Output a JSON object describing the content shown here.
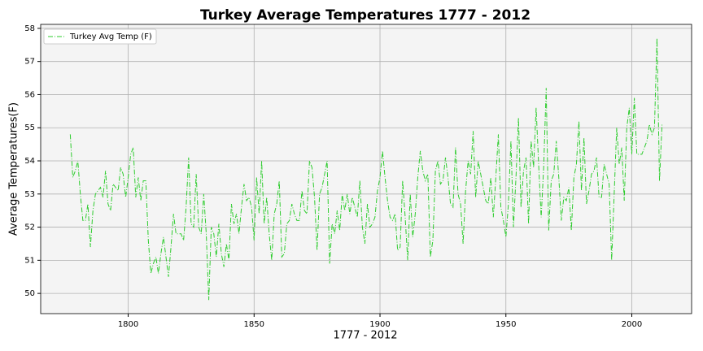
{
  "chart_data": {
    "type": "line",
    "title": "Turkey Average Temperatures 1777 - 2012",
    "xlabel": "1777 - 2012",
    "ylabel": "Average Temperatures(F)",
    "x": [
      1777,
      1778,
      1779,
      1780,
      1781,
      1782,
      1783,
      1784,
      1785,
      1786,
      1787,
      1788,
      1789,
      1790,
      1791,
      1792,
      1793,
      1794,
      1795,
      1796,
      1797,
      1798,
      1799,
      1800,
      1801,
      1802,
      1803,
      1804,
      1805,
      1806,
      1807,
      1808,
      1809,
      1810,
      1811,
      1812,
      1813,
      1814,
      1815,
      1816,
      1817,
      1818,
      1819,
      1820,
      1821,
      1822,
      1823,
      1824,
      1825,
      1826,
      1827,
      1828,
      1829,
      1830,
      1831,
      1832,
      1833,
      1834,
      1835,
      1836,
      1837,
      1838,
      1839,
      1840,
      1841,
      1842,
      1843,
      1844,
      1845,
      1846,
      1847,
      1848,
      1849,
      1850,
      1851,
      1852,
      1853,
      1854,
      1855,
      1856,
      1857,
      1858,
      1859,
      1860,
      1861,
      1862,
      1863,
      1864,
      1865,
      1866,
      1867,
      1868,
      1869,
      1870,
      1871,
      1872,
      1873,
      1874,
      1875,
      1876,
      1877,
      1878,
      1879,
      1880,
      1881,
      1882,
      1883,
      1884,
      1885,
      1886,
      1887,
      1888,
      1889,
      1890,
      1891,
      1892,
      1893,
      1894,
      1895,
      1896,
      1897,
      1898,
      1899,
      1900,
      1901,
      1902,
      1903,
      1904,
      1905,
      1906,
      1907,
      1908,
      1909,
      1910,
      1911,
      1912,
      1913,
      1914,
      1915,
      1916,
      1917,
      1918,
      1919,
      1920,
      1921,
      1922,
      1923,
      1924,
      1925,
      1926,
      1927,
      1928,
      1929,
      1930,
      1931,
      1932,
      1933,
      1934,
      1935,
      1936,
      1937,
      1938,
      1939,
      1940,
      1941,
      1942,
      1943,
      1944,
      1945,
      1946,
      1947,
      1948,
      1949,
      1950,
      1951,
      1952,
      1953,
      1954,
      1955,
      1956,
      1957,
      1958,
      1959,
      1960,
      1961,
      1962,
      1963,
      1964,
      1965,
      1966,
      1967,
      1968,
      1969,
      1970,
      1971,
      1972,
      1973,
      1974,
      1975,
      1976,
      1977,
      1978,
      1979,
      1980,
      1981,
      1982,
      1983,
      1984,
      1985,
      1986,
      1987,
      1988,
      1989,
      1990,
      1991,
      1992,
      1993,
      1994,
      1995,
      1996,
      1997,
      1998,
      1999,
      2000,
      2001,
      2002,
      2003,
      2004,
      2005,
      2006,
      2007,
      2008,
      2009,
      2010,
      2011,
      2012
    ],
    "series": [
      {
        "name": "Turkey Avg Temp (F)",
        "color": "#2ecc2e",
        "values": [
          54.8,
          53.5,
          53.7,
          54.0,
          53.0,
          52.2,
          52.2,
          52.7,
          51.4,
          52.5,
          53.0,
          53.1,
          53.2,
          52.9,
          53.7,
          52.7,
          52.5,
          53.3,
          53.2,
          53.1,
          53.8,
          53.6,
          52.9,
          53.5,
          54.2,
          54.4,
          52.9,
          53.5,
          52.8,
          53.4,
          53.4,
          51.6,
          50.6,
          50.9,
          51.1,
          50.6,
          51.2,
          51.7,
          51.1,
          50.5,
          51.4,
          52.4,
          51.8,
          51.8,
          51.8,
          51.6,
          52.6,
          54.1,
          52.1,
          52.0,
          53.6,
          52.0,
          51.8,
          53.0,
          51.8,
          49.8,
          52.0,
          51.8,
          51.1,
          52.1,
          51.2,
          50.8,
          51.5,
          51.0,
          52.7,
          52.1,
          52.4,
          51.8,
          52.6,
          53.3,
          52.8,
          52.9,
          52.6,
          51.6,
          53.5,
          52.4,
          54.0,
          52.1,
          52.9,
          51.8,
          51.0,
          52.4,
          52.7,
          53.4,
          51.1,
          51.2,
          52.1,
          52.2,
          52.7,
          52.4,
          52.2,
          52.2,
          53.1,
          52.5,
          52.4,
          54.0,
          53.8,
          52.9,
          51.3,
          53.0,
          53.2,
          53.6,
          54.0,
          50.9,
          52.1,
          51.8,
          52.5,
          51.9,
          53.0,
          52.5,
          53.0,
          52.4,
          52.9,
          52.6,
          52.3,
          53.4,
          52.0,
          51.5,
          52.7,
          52.0,
          52.1,
          52.3,
          53.1,
          53.5,
          54.3,
          53.5,
          52.8,
          52.3,
          52.2,
          52.4,
          51.3,
          51.4,
          53.4,
          52.3,
          51.0,
          53.0,
          51.7,
          52.4,
          53.5,
          54.3,
          53.7,
          53.4,
          53.6,
          51.1,
          51.6,
          53.7,
          54.0,
          53.3,
          53.4,
          54.1,
          53.5,
          52.7,
          52.6,
          54.4,
          53.0,
          52.7,
          51.5,
          53.1,
          54.0,
          53.6,
          54.9,
          52.9,
          54.0,
          53.6,
          53.2,
          52.8,
          52.7,
          53.5,
          52.3,
          53.5,
          54.8,
          52.6,
          52.2,
          51.7,
          52.7,
          54.6,
          52.0,
          53.5,
          55.3,
          52.6,
          53.7,
          54.1,
          52.1,
          54.6,
          53.8,
          55.6,
          53.9,
          52.3,
          53.8,
          56.2,
          51.9,
          53.4,
          53.6,
          54.6,
          53.5,
          52.2,
          52.9,
          52.8,
          53.2,
          51.9,
          53.5,
          53.9,
          55.2,
          53.1,
          54.7,
          52.7,
          53.1,
          53.6,
          53.7,
          54.1,
          52.9,
          52.9,
          53.9,
          53.6,
          53.3,
          51.0,
          53.0,
          55.0,
          53.9,
          54.4,
          52.8,
          55.0,
          55.6,
          54.2,
          55.9,
          54.2,
          54.2,
          54.2,
          54.4,
          54.6,
          55.1,
          54.8,
          55.0,
          57.7,
          53.4,
          55.1
        ]
      }
    ],
    "xlim": [
      1765.25,
      2023.75
    ],
    "xticks": [
      1800,
      1850,
      1900,
      1950,
      2000
    ],
    "ylim": [
      49.39,
      58.12
    ],
    "yticks": [
      50,
      51,
      52,
      53,
      54,
      55,
      56,
      57,
      58
    ],
    "grid": true,
    "legend": "upper left"
  }
}
